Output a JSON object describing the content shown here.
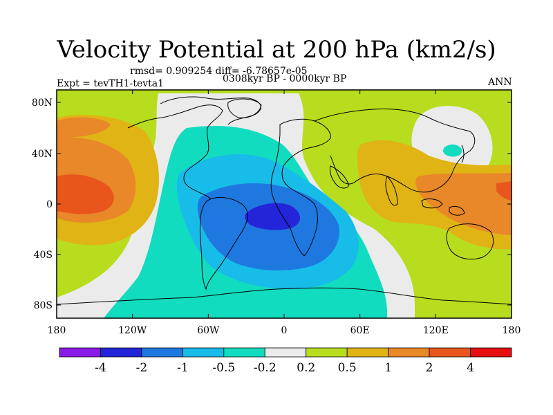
{
  "title": "Velocity Potential at 200 hPa (km2/s)",
  "stats": "rmsd= 0.909254  diff= -6.78657e-05",
  "experiment": "Expt = tevTH1-tevta1",
  "period": "0308kyr BP - 0000kyr BP",
  "season": "ANN",
  "lat_ticks": [
    "80N",
    "40N",
    "0",
    "40S",
    "80S"
  ],
  "lon_ticks": [
    "180",
    "120W",
    "60W",
    "0",
    "60E",
    "120E",
    "180"
  ],
  "colorbar": {
    "labels": [
      "-4",
      "-2",
      "-1",
      "-0.5",
      "-0.2",
      "0.2",
      "0.5",
      "1",
      "2",
      "4"
    ],
    "colors": [
      "#8a1ae6",
      "#2424d8",
      "#1e78e0",
      "#18bce8",
      "#12dcc0",
      "#ebebeb",
      "#b8dc1e",
      "#e0b414",
      "#e88828",
      "#e8561c",
      "#e60e0e"
    ]
  }
}
